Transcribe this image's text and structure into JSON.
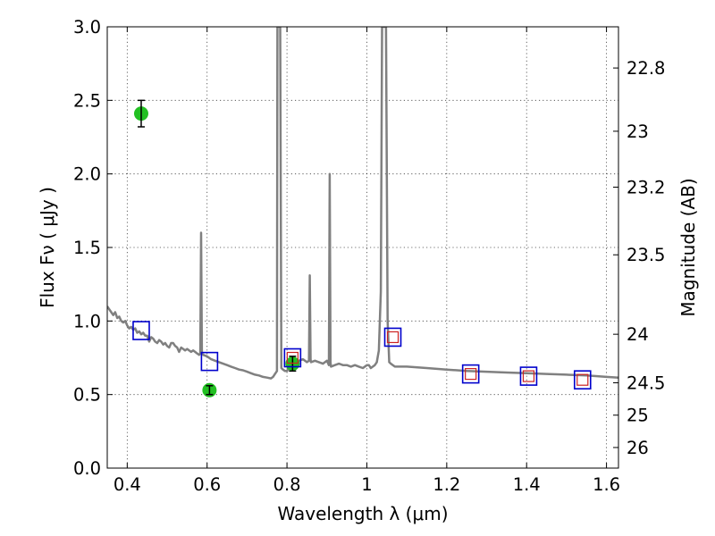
{
  "chart_data": {
    "type": "scatter",
    "xlabel": "Wavelength  λ (μm)",
    "ylabel": "Flux  Fν  ( μJy )",
    "ylabel_right": "Magnitude (AB)",
    "xlim": [
      0.35,
      1.63
    ],
    "ylim": [
      0.0,
      3.0
    ],
    "grid": true,
    "x_ticks": [
      {
        "value": 0.4,
        "label": "0.4"
      },
      {
        "value": 0.6,
        "label": "0.6"
      },
      {
        "value": 0.8,
        "label": "0.8"
      },
      {
        "value": 1.0,
        "label": "1"
      },
      {
        "value": 1.2,
        "label": "1.2"
      },
      {
        "value": 1.4,
        "label": "1.4"
      },
      {
        "value": 1.6,
        "label": "1.6"
      }
    ],
    "y_ticks": [
      {
        "value": 0.0,
        "label": "0.0"
      },
      {
        "value": 0.5,
        "label": "0.5"
      },
      {
        "value": 1.0,
        "label": "1.0"
      },
      {
        "value": 1.5,
        "label": "1.5"
      },
      {
        "value": 2.0,
        "label": "2.0"
      },
      {
        "value": 2.5,
        "label": "2.5"
      },
      {
        "value": 3.0,
        "label": "3.0"
      }
    ],
    "right_ticks": [
      {
        "flux": 2.72,
        "label": "22.8"
      },
      {
        "flux": 2.29,
        "label": "23"
      },
      {
        "flux": 1.91,
        "label": "23.2"
      },
      {
        "flux": 1.45,
        "label": "23.5"
      },
      {
        "flux": 0.91,
        "label": "24"
      },
      {
        "flux": 0.58,
        "label": "24.5"
      },
      {
        "flux": 0.36,
        "label": "25"
      },
      {
        "flux": 0.14,
        "label": "26"
      }
    ],
    "series": [
      {
        "style": "line",
        "color": "#808080",
        "points": [
          [
            0.35,
            1.1
          ],
          [
            0.355,
            1.08
          ],
          [
            0.36,
            1.06
          ],
          [
            0.365,
            1.04
          ],
          [
            0.37,
            1.06
          ],
          [
            0.375,
            1.02
          ],
          [
            0.38,
            1.03
          ],
          [
            0.385,
            1.0
          ],
          [
            0.39,
            0.99
          ],
          [
            0.395,
            1.0
          ],
          [
            0.4,
            0.97
          ],
          [
            0.405,
            0.95
          ],
          [
            0.41,
            0.96
          ],
          [
            0.415,
            0.94
          ],
          [
            0.42,
            0.95
          ],
          [
            0.425,
            0.92
          ],
          [
            0.43,
            0.93
          ],
          [
            0.435,
            0.91
          ],
          [
            0.44,
            0.92
          ],
          [
            0.445,
            0.9
          ],
          [
            0.45,
            0.9
          ],
          [
            0.455,
            0.86
          ],
          [
            0.46,
            0.89
          ],
          [
            0.465,
            0.88
          ],
          [
            0.47,
            0.86
          ],
          [
            0.475,
            0.85
          ],
          [
            0.48,
            0.87
          ],
          [
            0.485,
            0.86
          ],
          [
            0.49,
            0.84
          ],
          [
            0.495,
            0.85
          ],
          [
            0.5,
            0.83
          ],
          [
            0.505,
            0.82
          ],
          [
            0.51,
            0.85
          ],
          [
            0.515,
            0.85
          ],
          [
            0.52,
            0.83
          ],
          [
            0.525,
            0.82
          ],
          [
            0.53,
            0.79
          ],
          [
            0.535,
            0.82
          ],
          [
            0.54,
            0.81
          ],
          [
            0.545,
            0.8
          ],
          [
            0.55,
            0.81
          ],
          [
            0.555,
            0.8
          ],
          [
            0.56,
            0.79
          ],
          [
            0.565,
            0.8
          ],
          [
            0.57,
            0.79
          ],
          [
            0.575,
            0.78
          ],
          [
            0.58,
            0.77
          ],
          [
            0.583,
            0.78
          ],
          [
            0.585,
            1.6
          ],
          [
            0.587,
            0.78
          ],
          [
            0.59,
            0.77
          ],
          [
            0.6,
            0.76
          ],
          [
            0.61,
            0.74
          ],
          [
            0.62,
            0.73
          ],
          [
            0.63,
            0.72
          ],
          [
            0.64,
            0.71
          ],
          [
            0.65,
            0.7
          ],
          [
            0.66,
            0.69
          ],
          [
            0.67,
            0.68
          ],
          [
            0.68,
            0.67
          ],
          [
            0.69,
            0.665
          ],
          [
            0.7,
            0.655
          ],
          [
            0.71,
            0.645
          ],
          [
            0.72,
            0.635
          ],
          [
            0.73,
            0.63
          ],
          [
            0.74,
            0.62
          ],
          [
            0.75,
            0.615
          ],
          [
            0.76,
            0.61
          ],
          [
            0.765,
            0.62
          ],
          [
            0.77,
            0.64
          ],
          [
            0.775,
            0.66
          ],
          [
            0.776,
            3.0
          ],
          [
            0.783,
            3.0
          ],
          [
            0.786,
            0.68
          ],
          [
            0.79,
            0.67
          ],
          [
            0.795,
            0.66
          ],
          [
            0.8,
            0.66
          ],
          [
            0.805,
            0.68
          ],
          [
            0.81,
            0.7
          ],
          [
            0.815,
            0.71
          ],
          [
            0.82,
            0.72
          ],
          [
            0.83,
            0.73
          ],
          [
            0.84,
            0.74
          ],
          [
            0.85,
            0.72
          ],
          [
            0.855,
            0.73
          ],
          [
            0.857,
            1.31
          ],
          [
            0.859,
            0.74
          ],
          [
            0.86,
            0.72
          ],
          [
            0.87,
            0.73
          ],
          [
            0.88,
            0.72
          ],
          [
            0.89,
            0.71
          ],
          [
            0.9,
            0.73
          ],
          [
            0.905,
            0.7
          ],
          [
            0.907,
            2.0
          ],
          [
            0.909,
            0.72
          ],
          [
            0.91,
            0.69
          ],
          [
            0.92,
            0.7
          ],
          [
            0.93,
            0.71
          ],
          [
            0.94,
            0.7
          ],
          [
            0.95,
            0.7
          ],
          [
            0.96,
            0.69
          ],
          [
            0.97,
            0.7
          ],
          [
            0.98,
            0.69
          ],
          [
            0.99,
            0.68
          ],
          [
            1.0,
            0.7
          ],
          [
            1.005,
            0.7
          ],
          [
            1.01,
            0.68
          ],
          [
            1.02,
            0.7
          ],
          [
            1.025,
            0.72
          ],
          [
            1.03,
            0.8
          ],
          [
            1.035,
            1.2
          ],
          [
            1.038,
            3.0
          ],
          [
            1.048,
            3.0
          ],
          [
            1.052,
            1.0
          ],
          [
            1.056,
            0.72
          ],
          [
            1.06,
            0.71
          ],
          [
            1.07,
            0.69
          ],
          [
            1.08,
            0.69
          ],
          [
            1.1,
            0.69
          ],
          [
            1.15,
            0.68
          ],
          [
            1.2,
            0.67
          ],
          [
            1.25,
            0.66
          ],
          [
            1.3,
            0.655
          ],
          [
            1.35,
            0.65
          ],
          [
            1.4,
            0.645
          ],
          [
            1.45,
            0.64
          ],
          [
            1.5,
            0.635
          ],
          [
            1.55,
            0.63
          ],
          [
            1.6,
            0.62
          ],
          [
            1.63,
            0.615
          ]
        ]
      },
      {
        "style": "errorbar-circle",
        "color": "#22c022",
        "points": [
          {
            "x": 0.435,
            "y": 2.41,
            "err": 0.09
          },
          {
            "x": 0.606,
            "y": 0.53,
            "err": 0.03
          },
          {
            "x": 0.814,
            "y": 0.71,
            "err": 0.05
          }
        ]
      },
      {
        "style": "open-square",
        "color": "#0000cc",
        "points": [
          {
            "x": 0.435,
            "y": 0.935
          },
          {
            "x": 0.606,
            "y": 0.725
          },
          {
            "x": 0.814,
            "y": 0.75
          },
          {
            "x": 1.065,
            "y": 0.89
          },
          {
            "x": 1.26,
            "y": 0.64
          },
          {
            "x": 1.405,
            "y": 0.625
          },
          {
            "x": 1.54,
            "y": 0.6
          }
        ]
      },
      {
        "style": "open-square-small",
        "color": "#cc2222",
        "points": [
          {
            "x": 0.814,
            "y": 0.75
          },
          {
            "x": 1.065,
            "y": 0.89
          },
          {
            "x": 1.26,
            "y": 0.64
          },
          {
            "x": 1.405,
            "y": 0.625
          },
          {
            "x": 1.54,
            "y": 0.6
          }
        ]
      }
    ]
  }
}
